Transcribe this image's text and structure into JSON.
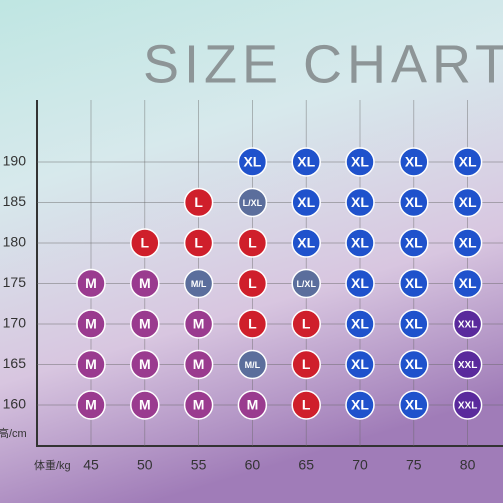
{
  "title": "SIZE CHART",
  "y_label": "高/cm",
  "x_label": "体重/kg",
  "weights": [
    45,
    50,
    55,
    60,
    65,
    70,
    75,
    80
  ],
  "heights": [
    190,
    185,
    180,
    175,
    170,
    165,
    160
  ],
  "colors": {
    "M": "#9a3b8f",
    "L": "#cf1f2b",
    "XL": "#1f52cc",
    "XXL": "#5a2a9c",
    "mixed": "#5b6e9c"
  },
  "cells": [
    [
      null,
      null,
      null,
      "XL",
      "XL",
      "XL",
      "XL",
      "XL"
    ],
    [
      null,
      null,
      "L",
      "L/XL",
      "XL",
      "XL",
      "XL",
      "XL"
    ],
    [
      null,
      "L",
      "L",
      "L",
      "XL",
      "XL",
      "XL",
      "XL"
    ],
    [
      "M",
      "M",
      "M/L",
      "L",
      "L/XL",
      "XL",
      "XL",
      "XL"
    ],
    [
      "M",
      "M",
      "M",
      "L",
      "L",
      "XL",
      "XL",
      "XXL"
    ],
    [
      "M",
      "M",
      "M",
      "M/L",
      "L",
      "XL",
      "XL",
      "XXL"
    ],
    [
      "M",
      "M",
      "M",
      "M",
      "L",
      "XL",
      "XL",
      "XXL"
    ]
  ]
}
